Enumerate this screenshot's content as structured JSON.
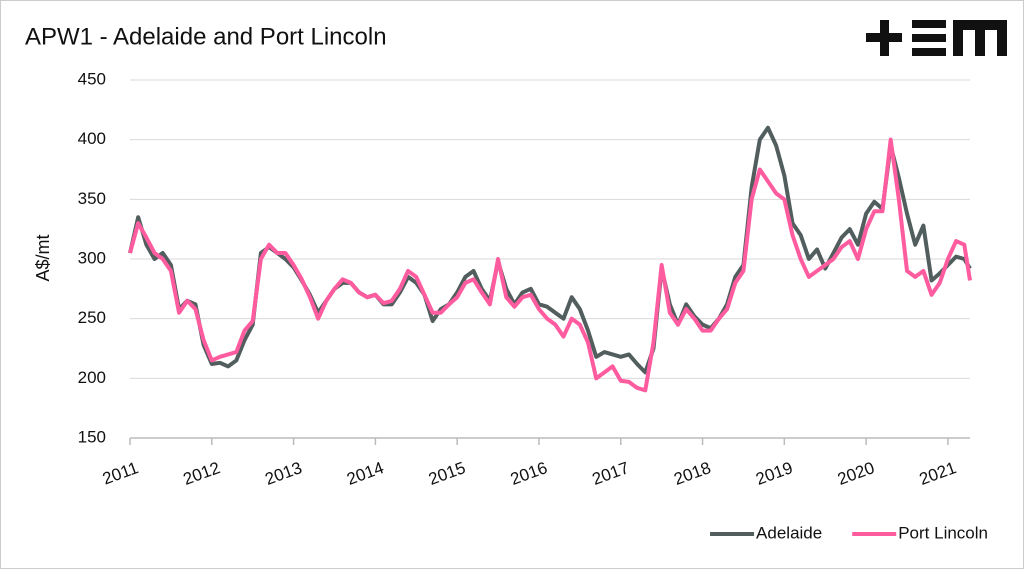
{
  "chart_data": {
    "type": "line",
    "title": "APW1 - Adelaide and Port Lincoln",
    "y_label": "A$/mt",
    "x": [
      2011.0,
      2011.1,
      2011.2,
      2011.3,
      2011.4,
      2011.5,
      2011.6,
      2011.7,
      2011.8,
      2011.9,
      2012.0,
      2012.1,
      2012.2,
      2012.3,
      2012.4,
      2012.5,
      2012.6,
      2012.7,
      2012.8,
      2012.9,
      2013.0,
      2013.1,
      2013.2,
      2013.3,
      2013.4,
      2013.5,
      2013.6,
      2013.7,
      2013.8,
      2013.9,
      2014.0,
      2014.1,
      2014.2,
      2014.3,
      2014.4,
      2014.5,
      2014.6,
      2014.7,
      2014.8,
      2014.9,
      2015.0,
      2015.1,
      2015.2,
      2015.3,
      2015.4,
      2015.5,
      2015.6,
      2015.7,
      2015.8,
      2015.9,
      2016.0,
      2016.1,
      2016.2,
      2016.3,
      2016.4,
      2016.5,
      2016.6,
      2016.7,
      2016.8,
      2016.9,
      2017.0,
      2017.1,
      2017.2,
      2017.3,
      2017.4,
      2017.5,
      2017.6,
      2017.7,
      2017.8,
      2017.9,
      2018.0,
      2018.1,
      2018.2,
      2018.3,
      2018.4,
      2018.5,
      2018.6,
      2018.7,
      2018.8,
      2018.9,
      2019.0,
      2019.1,
      2019.2,
      2019.3,
      2019.4,
      2019.5,
      2019.6,
      2019.7,
      2019.8,
      2019.9,
      2020.0,
      2020.1,
      2020.2,
      2020.3,
      2020.4,
      2020.5,
      2020.6,
      2020.7,
      2020.8,
      2020.9,
      2021.0,
      2021.1,
      2021.2,
      2021.27
    ],
    "series": [
      {
        "name": "Adelaide",
        "color": "#525e5e",
        "values": [
          305,
          335,
          312,
          300,
          305,
          295,
          258,
          265,
          262,
          228,
          212,
          213,
          210,
          215,
          232,
          245,
          305,
          310,
          305,
          300,
          293,
          282,
          270,
          255,
          265,
          275,
          280,
          280,
          272,
          268,
          270,
          262,
          262,
          272,
          285,
          280,
          270,
          248,
          258,
          262,
          272,
          285,
          290,
          275,
          265,
          298,
          275,
          262,
          272,
          275,
          262,
          260,
          255,
          250,
          268,
          258,
          240,
          218,
          222,
          220,
          218,
          220,
          212,
          205,
          225,
          292,
          262,
          245,
          262,
          252,
          245,
          242,
          250,
          262,
          285,
          295,
          360,
          400,
          410,
          395,
          370,
          330,
          320,
          300,
          308,
          292,
          305,
          318,
          325,
          312,
          338,
          348,
          342,
          395,
          368,
          338,
          312,
          328,
          282,
          288,
          295,
          302,
          300,
          292
        ]
      },
      {
        "name": "Port Lincoln",
        "color": "#ff5ca0",
        "values": [
          305,
          330,
          318,
          305,
          300,
          290,
          255,
          265,
          258,
          232,
          215,
          218,
          220,
          222,
          240,
          248,
          300,
          312,
          305,
          305,
          295,
          283,
          268,
          250,
          265,
          275,
          283,
          280,
          272,
          268,
          270,
          263,
          265,
          275,
          290,
          285,
          270,
          255,
          255,
          262,
          268,
          280,
          283,
          272,
          262,
          300,
          268,
          260,
          268,
          270,
          258,
          250,
          245,
          235,
          250,
          245,
          230,
          200,
          205,
          210,
          198,
          197,
          192,
          190,
          230,
          295,
          255,
          245,
          258,
          250,
          240,
          240,
          250,
          258,
          280,
          290,
          350,
          375,
          365,
          355,
          350,
          320,
          300,
          285,
          290,
          295,
          300,
          310,
          315,
          300,
          325,
          340,
          340,
          400,
          350,
          290,
          285,
          290,
          270,
          280,
          300,
          315,
          312,
          282
        ]
      }
    ],
    "xlim": [
      2011,
      2021.27
    ],
    "xticks": [
      2011,
      2012,
      2013,
      2014,
      2015,
      2016,
      2017,
      2018,
      2019,
      2020,
      2021
    ],
    "ylim": [
      150,
      450
    ],
    "yticks": [
      150,
      200,
      250,
      300,
      350,
      400,
      450
    ],
    "grid": true,
    "legend": "bottom-right"
  }
}
